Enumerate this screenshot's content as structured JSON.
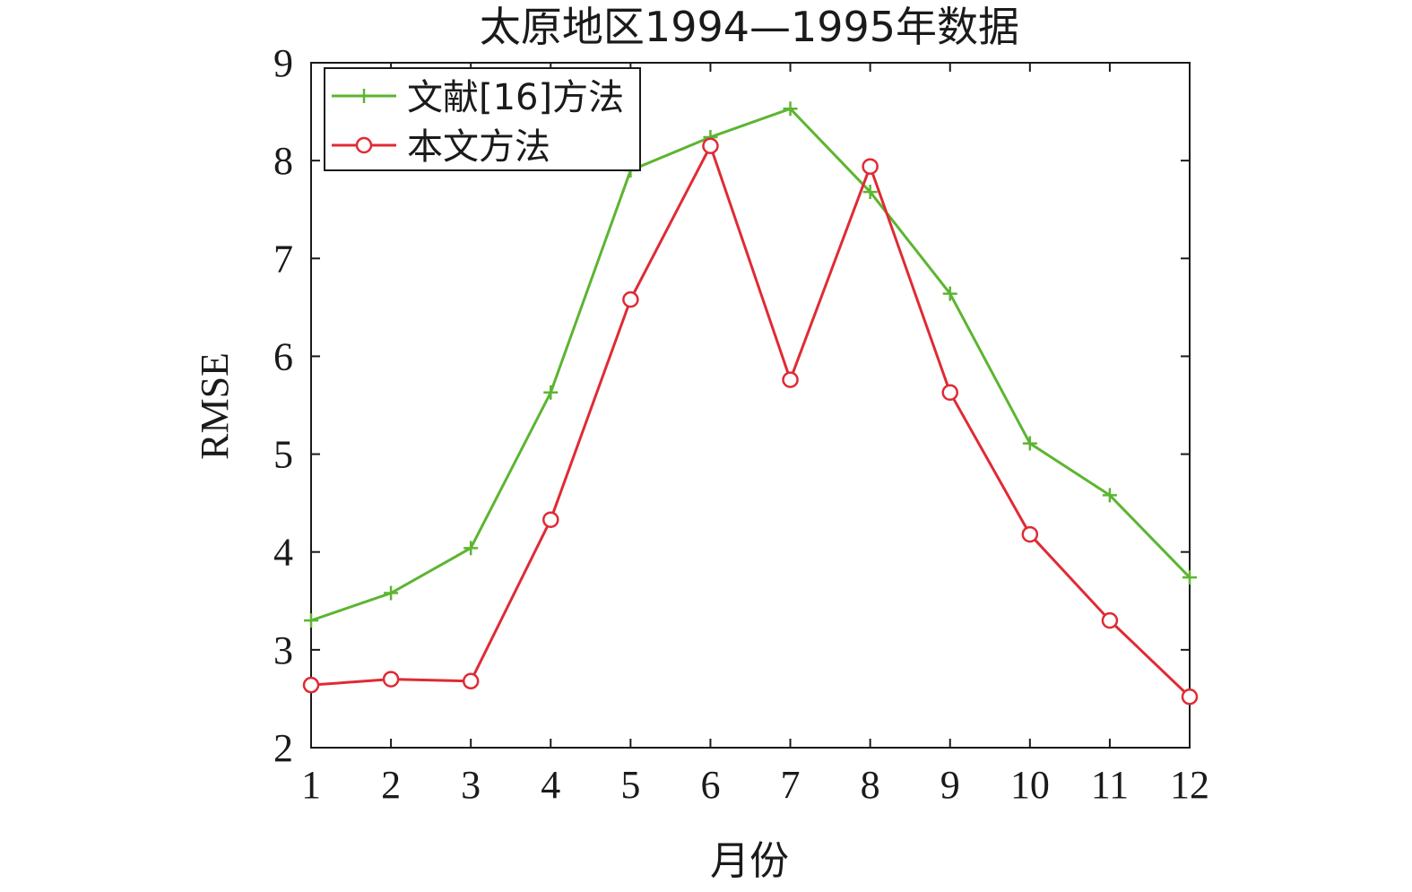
{
  "chart_data": {
    "type": "line",
    "title": "太原地区1994—1995年数据",
    "xlabel": "月份",
    "ylabel": "RMSE",
    "x": [
      1,
      2,
      3,
      4,
      5,
      6,
      7,
      8,
      9,
      10,
      11,
      12
    ],
    "xlim": [
      1,
      12
    ],
    "ylim": [
      2,
      9
    ],
    "xticks": [
      "1",
      "2",
      "3",
      "4",
      "5",
      "6",
      "7",
      "8",
      "9",
      "10",
      "11",
      "12"
    ],
    "yticks": [
      "2",
      "3",
      "4",
      "5",
      "6",
      "7",
      "8",
      "9"
    ],
    "grid": false,
    "legend_position": "top-left",
    "series": [
      {
        "name": "文献[16]方法",
        "color": "#5cb531",
        "marker": "plus",
        "values": [
          3.3,
          3.58,
          4.04,
          5.63,
          7.9,
          8.24,
          8.53,
          7.68,
          6.64,
          5.11,
          4.58,
          3.74
        ]
      },
      {
        "name": "本文方法",
        "color": "#e02a35",
        "marker": "circle",
        "values": [
          2.64,
          2.7,
          2.68,
          4.33,
          6.58,
          8.15,
          5.76,
          7.94,
          5.63,
          4.18,
          3.3,
          2.52
        ]
      }
    ]
  }
}
